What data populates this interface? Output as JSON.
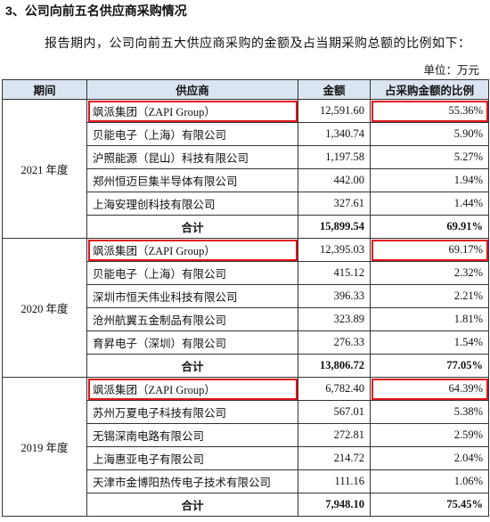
{
  "heading": "3、公司向前五名供应商采购情况",
  "intro": "报告期内，公司向前五大供应商采购的金额及占当期采购总额的比例如下：",
  "unit": "单位：万元",
  "table": {
    "headers": [
      "期间",
      "供应商",
      "金额",
      "占采购金额的比例"
    ],
    "groups": [
      {
        "period": "2021 年度",
        "rows": [
          [
            "飒派集团（ZAPI Group）",
            "12,591.60",
            "55.36%"
          ],
          [
            "贝能电子（上海）有限公司",
            "1,340.74",
            "5.90%"
          ],
          [
            "沪照能源（昆山）科技有限公司",
            "1,197.58",
            "5.27%"
          ],
          [
            "郑州恒迈巨集半导体有限公司",
            "442.00",
            "1.94%"
          ],
          [
            "上海安理创科技有限公司",
            "327.61",
            "1.44%"
          ]
        ],
        "total": [
          "合计",
          "15,899.54",
          "69.91%"
        ]
      },
      {
        "period": "2020 年度",
        "rows": [
          [
            "飒派集团（ZAPI Group）",
            "12,395.03",
            "69.17%"
          ],
          [
            "贝能电子（上海）有限公司",
            "415.12",
            "2.32%"
          ],
          [
            "深圳市恒天伟业科技有限公司",
            "396.33",
            "2.21%"
          ],
          [
            "沧州航翼五金制品有限公司",
            "323.89",
            "1.81%"
          ],
          [
            "育昇电子（深圳）有限公司",
            "276.33",
            "1.54%"
          ]
        ],
        "total": [
          "合计",
          "13,806.72",
          "77.05%"
        ]
      },
      {
        "period": "2019 年度",
        "rows": [
          [
            "飒派集团（ZAPI Group）",
            "6,782.40",
            "64.39%"
          ],
          [
            "苏州万夏电子科技有限公司",
            "567.01",
            "5.38%"
          ],
          [
            "无锡深南电路有限公司",
            "272.81",
            "2.59%"
          ],
          [
            "上海惠亚电子有限公司",
            "214.72",
            "2.04%"
          ],
          [
            "天津市金博阳热传电子技术有限公司",
            "111.16",
            "1.06%"
          ]
        ],
        "total": [
          "合计",
          "7,948.10",
          "75.45%"
        ]
      }
    ]
  }
}
